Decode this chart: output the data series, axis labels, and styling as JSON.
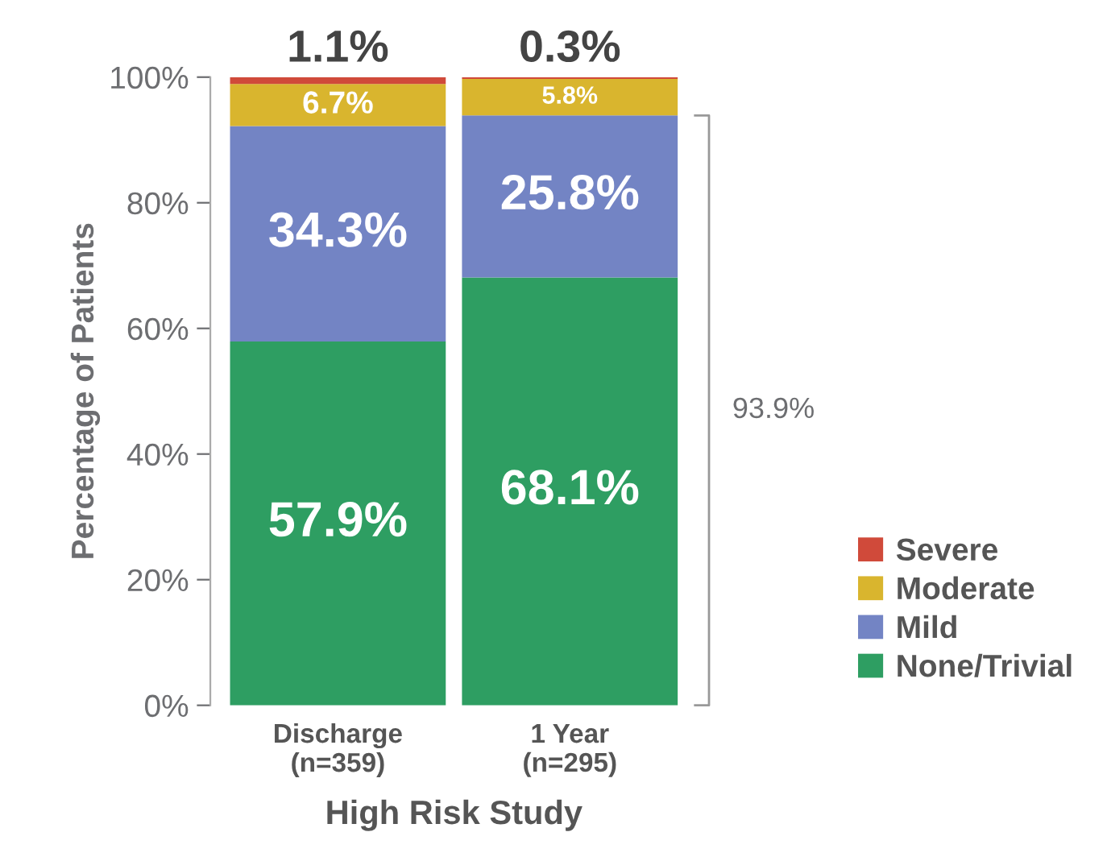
{
  "chart_data": {
    "type": "bar",
    "stacked": true,
    "xlabel": "High Risk Study",
    "ylabel": "Percentage of Patients",
    "categories": [
      "Discharge\n(n=359)",
      "1 Year\n(n=295)"
    ],
    "series": [
      {
        "name": "None/Trivial",
        "color": "#2e9e62",
        "values": [
          57.9,
          68.1
        ],
        "value_labels": [
          "57.9%",
          "68.1%"
        ]
      },
      {
        "name": "Mild",
        "color": "#7384c4",
        "values": [
          34.3,
          25.8
        ],
        "value_labels": [
          "34.3%",
          "25.8%"
        ]
      },
      {
        "name": "Moderate",
        "color": "#d9b52e",
        "values": [
          6.7,
          5.8
        ],
        "value_labels": [
          "6.7%",
          "5.8%"
        ]
      },
      {
        "name": "Severe",
        "color": "#d04a3a",
        "values": [
          1.1,
          0.3
        ],
        "value_labels": [
          "1.1%",
          "0.3%"
        ]
      }
    ],
    "ylim": [
      0,
      100
    ],
    "yticks": [
      {
        "value": 0,
        "label": "0%"
      },
      {
        "value": 20,
        "label": "20%"
      },
      {
        "value": 40,
        "label": "40%"
      },
      {
        "value": 60,
        "label": "60%"
      },
      {
        "value": 80,
        "label": "80%"
      },
      {
        "value": 100,
        "label": "100%"
      }
    ],
    "grid": false,
    "legend": "bottom right",
    "annotations": [
      "93.9%"
    ]
  }
}
